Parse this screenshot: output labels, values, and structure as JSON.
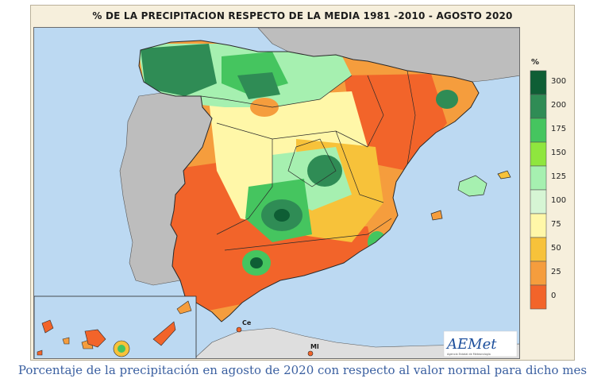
{
  "map": {
    "title": "% DE LA PRECIPITACION RESPECTO DE LA MEDIA 1981 -2010 - AGOSTO 2020",
    "caption": "Porcentaje de la precipitación en agosto de 2020 con respecto al valor normal para dicho mes",
    "places": {
      "ceuta": "Ce",
      "melilla": "Ml"
    },
    "logo": "AEMet",
    "logo_subtitle": "Agencia Estatal de Meteorología"
  },
  "legend": {
    "unit": "%",
    "classes": [
      {
        "label": "300",
        "color": "#0e5e35"
      },
      {
        "label": "200",
        "color": "#2f8c55"
      },
      {
        "label": "175",
        "color": "#45c55f"
      },
      {
        "label": "150",
        "color": "#8fe63e"
      },
      {
        "label": "125",
        "color": "#a6f0b0"
      },
      {
        "label": "100",
        "color": "#d6f5d4"
      },
      {
        "label": "75",
        "color": "#fff7a8"
      },
      {
        "label": "50",
        "color": "#f7c23a"
      },
      {
        "label": "25",
        "color": "#f59d3d"
      },
      {
        "label": "0",
        "color": "#f2642a"
      }
    ]
  },
  "colors": {
    "sea": "#bcd9f2",
    "portugal": "#bdbdbd",
    "africa": "#dedede",
    "france": "#bdbdbd",
    "border": "#2a2a2a"
  }
}
